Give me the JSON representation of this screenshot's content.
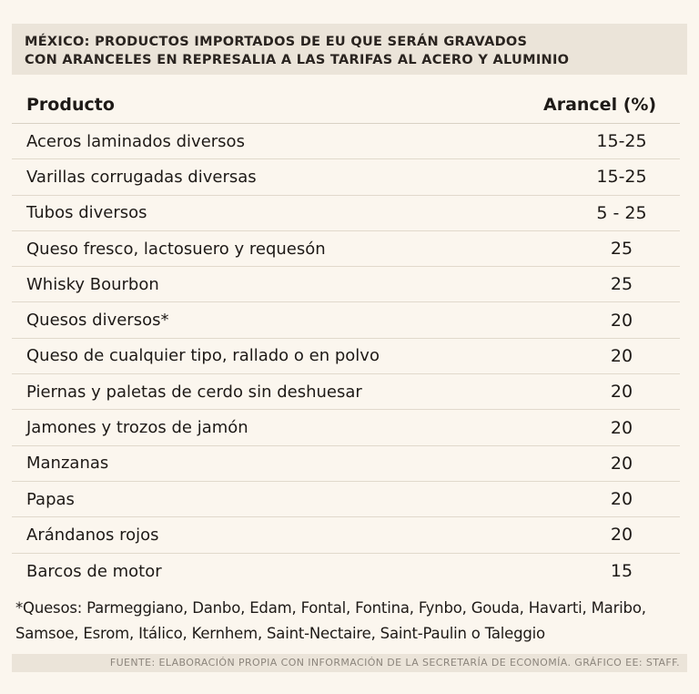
{
  "title": {
    "line1": "MÉXICO: PRODUCTOS IMPORTADOS DE EU QUE SERÁN GRAVADOS",
    "line2": "CON ARANCELES EN REPRESALIA A LAS TARIFAS AL ACERO Y ALUMINIO"
  },
  "table": {
    "headers": {
      "product": "Producto",
      "tariff": "Arancel (%)"
    },
    "rows": [
      {
        "product": "Aceros laminados diversos",
        "tariff": "15-25"
      },
      {
        "product": "Varillas corrugadas diversas",
        "tariff": "15-25"
      },
      {
        "product": "Tubos diversos",
        "tariff": "5 - 25"
      },
      {
        "product": "Queso fresco, lactosuero y requesón",
        "tariff": "25"
      },
      {
        "product": "Whisky Bourbon",
        "tariff": "25"
      },
      {
        "product": "Quesos diversos*",
        "tariff": "20"
      },
      {
        "product": "Queso de cualquier tipo, rallado o en polvo",
        "tariff": "20"
      },
      {
        "product": "Piernas y paletas de cerdo sin deshuesar",
        "tariff": "20"
      },
      {
        "product": "Jamones y trozos de jamón",
        "tariff": "20"
      },
      {
        "product": "Manzanas",
        "tariff": "20"
      },
      {
        "product": "Papas",
        "tariff": "20"
      },
      {
        "product": "Arándanos rojos",
        "tariff": "20"
      },
      {
        "product": "Barcos de motor",
        "tariff": "15"
      }
    ]
  },
  "footnote": {
    "line1": "*Quesos: Parmeggiano,  Danbo, Edam, Fontal, Fontina, Fynbo, Gouda, Havarti, Maribo,",
    "line2": "Samsoe, Esrom, Itálico, Kernhem, Saint-Nectaire, Saint-Paulin o Taleggio"
  },
  "source": "FUENTE: ELABORACIÓN PROPIA CON INFORMACIÓN DE LA SECRETARÍA DE ECONOMÍA.  GRÁFICO EE: STAFF."
}
